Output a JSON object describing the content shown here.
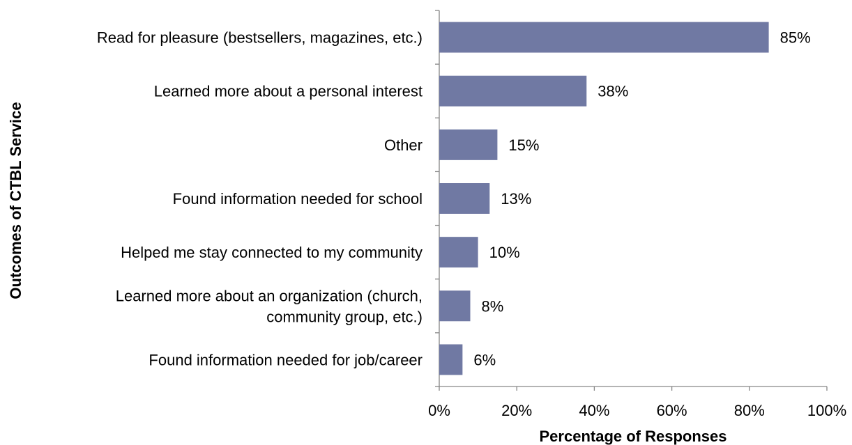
{
  "chart_data": {
    "type": "bar",
    "orientation": "horizontal",
    "categories": [
      "Read for pleasure (bestsellers, magazines, etc.)",
      "Learned more about a personal interest",
      "Other",
      "Found information needed for school",
      "Helped me stay connected to my community",
      "Learned more about an organization (church, community group, etc.)",
      "Found information needed for job/career"
    ],
    "category_lines": [
      [
        "Read for pleasure (bestsellers, magazines, etc.)"
      ],
      [
        "Learned more about a personal interest"
      ],
      [
        "Other"
      ],
      [
        "Found information needed for school"
      ],
      [
        "Helped me stay connected to my community"
      ],
      [
        "Learned more about an organization (church,",
        "community group, etc.)"
      ],
      [
        "Found information needed for job/career"
      ]
    ],
    "values": [
      85,
      38,
      15,
      13,
      10,
      8,
      6
    ],
    "data_labels": [
      "85%",
      "38%",
      "15%",
      "13%",
      "10%",
      "8%",
      "6%"
    ],
    "xlabel": "Percentage of Responses",
    "ylabel": "Outcomes of CTBL Service",
    "xlim": [
      0,
      100
    ],
    "xticks": [
      0,
      20,
      40,
      60,
      80,
      100
    ],
    "xtick_labels": [
      "0%",
      "20%",
      "40%",
      "60%",
      "80%",
      "100%"
    ],
    "grid": false,
    "legend": "none",
    "bar_color": "#7079A3",
    "axis_color": "#868686"
  }
}
